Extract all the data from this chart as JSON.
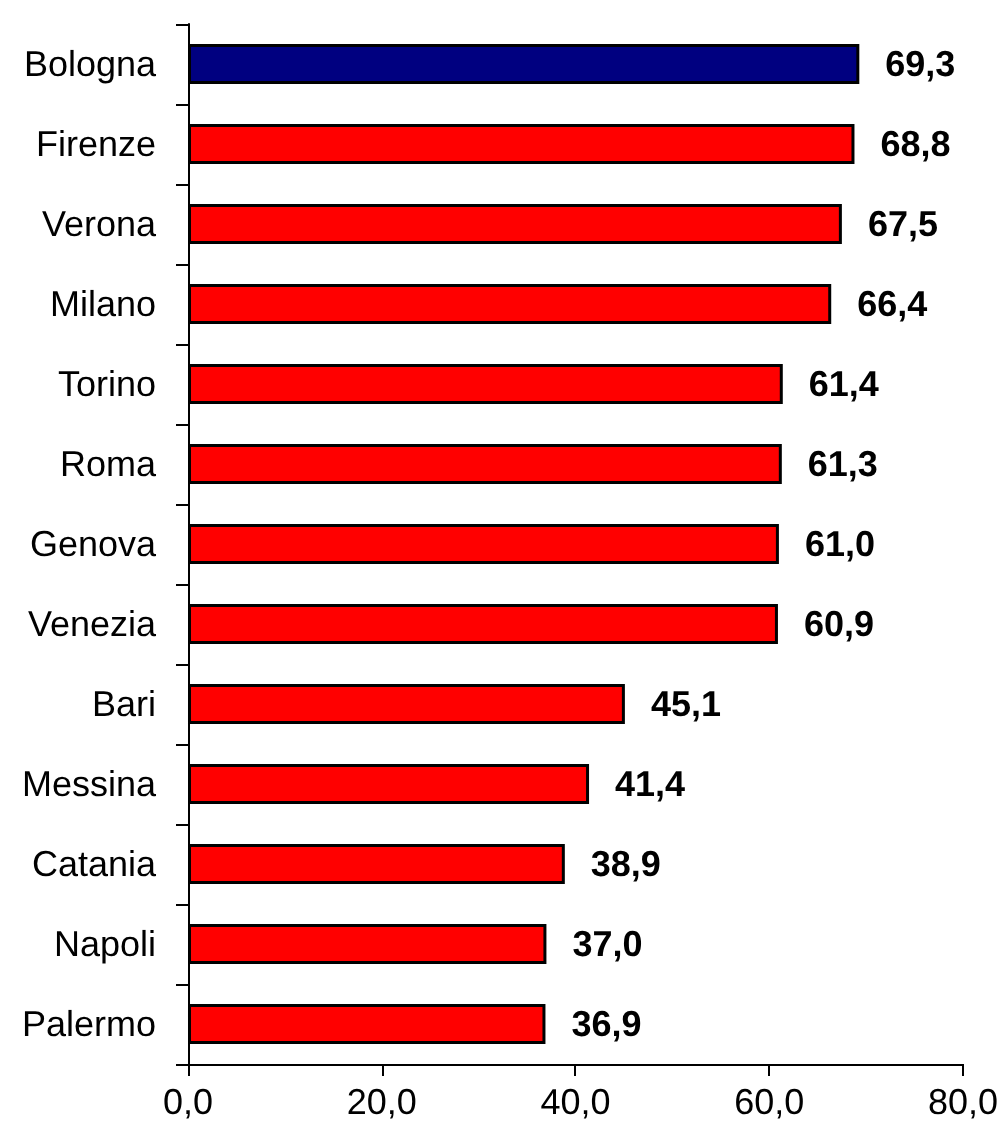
{
  "chart_data": {
    "type": "bar",
    "orientation": "horizontal",
    "categories": [
      "Bologna",
      "Firenze",
      "Verona",
      "Milano",
      "Torino",
      "Roma",
      "Genova",
      "Venezia",
      "Bari",
      "Messina",
      "Catania",
      "Napoli",
      "Palermo"
    ],
    "values": [
      69.3,
      68.8,
      67.5,
      66.4,
      61.4,
      61.3,
      61.0,
      60.9,
      45.1,
      41.4,
      38.9,
      37.0,
      36.9
    ],
    "colors": [
      "#000080",
      "#ff0000",
      "#ff0000",
      "#ff0000",
      "#ff0000",
      "#ff0000",
      "#ff0000",
      "#ff0000",
      "#ff0000",
      "#ff0000",
      "#ff0000",
      "#ff0000",
      "#ff0000"
    ],
    "value_labels": [
      "69,3",
      "68,8",
      "67,5",
      "66,4",
      "61,4",
      "61,3",
      "61,0",
      "60,9",
      "45,1",
      "41,4",
      "38,9",
      "37,0",
      "36,9"
    ],
    "xlim": [
      0,
      80
    ],
    "xticks": [
      {
        "value": 0,
        "label": "0,0"
      },
      {
        "value": 20,
        "label": "20,0"
      },
      {
        "value": 40,
        "label": "40,0"
      },
      {
        "value": 60,
        "label": "60,0"
      },
      {
        "value": 80,
        "label": "80,0"
      }
    ],
    "grid": false
  }
}
